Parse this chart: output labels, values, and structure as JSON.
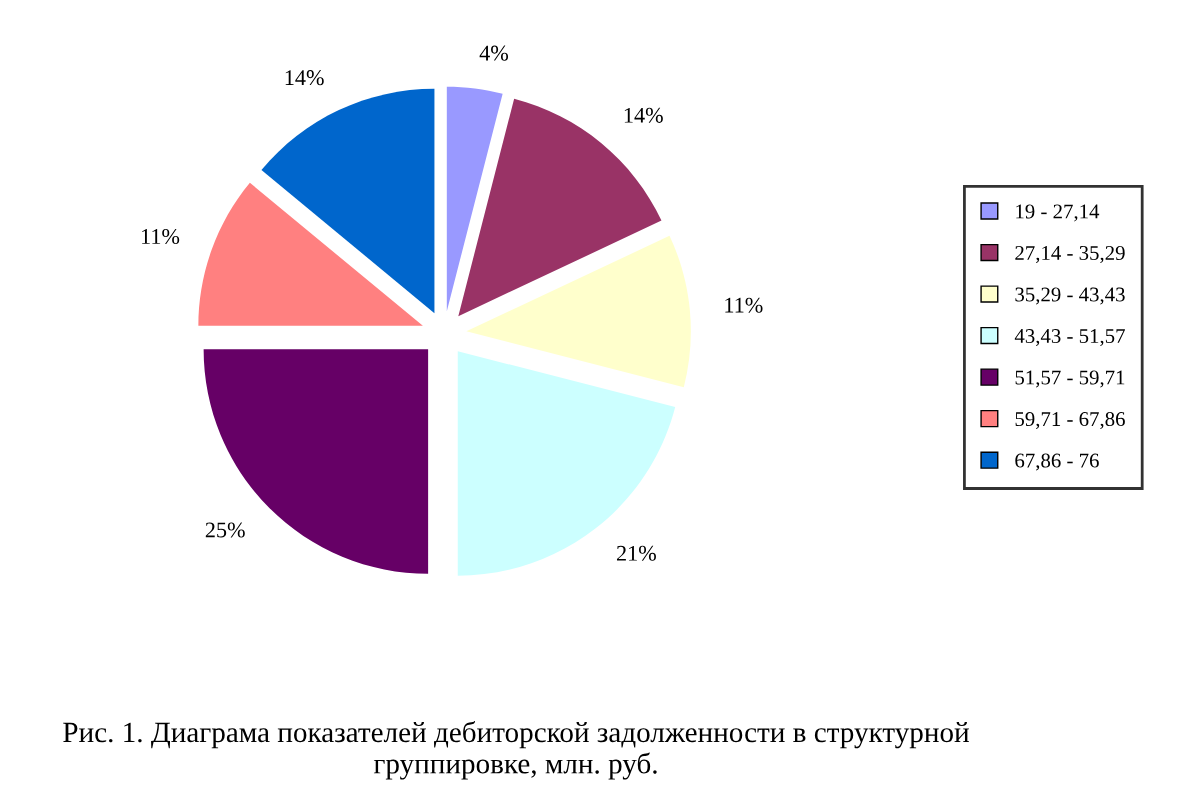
{
  "chart_data": {
    "type": "pie",
    "categories": [
      "19 - 27,14",
      "27,14 - 35,29",
      "35,29 - 43,43",
      "43,43 - 51,57",
      "51,57 - 59,71",
      "59,71 - 67,86",
      "67,86 - 76"
    ],
    "values": [
      4,
      14,
      11,
      21,
      25,
      11,
      14
    ],
    "colors": [
      "#9999ff",
      "#993366",
      "#ffffcc",
      "#ccffff",
      "#660066",
      "#ff8080",
      "#0066cc"
    ],
    "value_labels": [
      "4%",
      "14%",
      "11%",
      "21%",
      "25%",
      "11%",
      "14%"
    ],
    "legend": "right",
    "annotations": [
      "Рис. 1. Диаграма показателей дебиторской задолженности в структурной группировке, млн. руб."
    ]
  }
}
